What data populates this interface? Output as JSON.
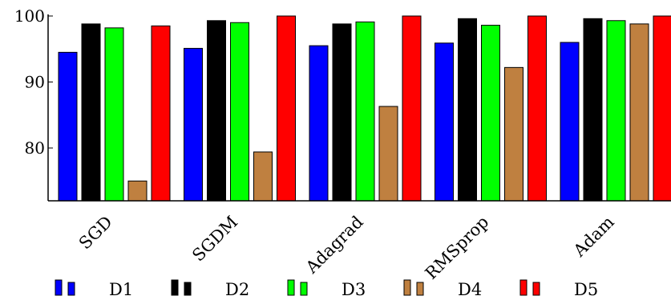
{
  "chart_data": {
    "type": "bar",
    "title": "",
    "xlabel": "",
    "ylabel": "",
    "categories": [
      "SGD",
      "SGDM",
      "Adagrad",
      "RMSprop",
      "Adam"
    ],
    "ylim": [
      72.0,
      100.0
    ],
    "yticks": [
      80,
      90,
      100
    ],
    "grid": false,
    "legend_position": "bottom",
    "series": [
      {
        "name": "D1",
        "color": "#0000ff",
        "values": [
          94.5,
          95.1,
          95.5,
          95.9,
          96.0
        ]
      },
      {
        "name": "D2",
        "color": "#000000",
        "values": [
          98.8,
          99.3,
          98.8,
          99.6,
          99.6
        ]
      },
      {
        "name": "D3",
        "color": "#00ff00",
        "values": [
          98.2,
          99.0,
          99.1,
          98.6,
          99.3
        ]
      },
      {
        "name": "D4",
        "color": "#bf8040",
        "values": [
          75.0,
          79.4,
          86.3,
          92.2,
          98.8
        ]
      },
      {
        "name": "D5",
        "color": "#ff0000",
        "values": [
          98.5,
          100.0,
          100.0,
          100.0,
          100.0
        ]
      }
    ]
  }
}
